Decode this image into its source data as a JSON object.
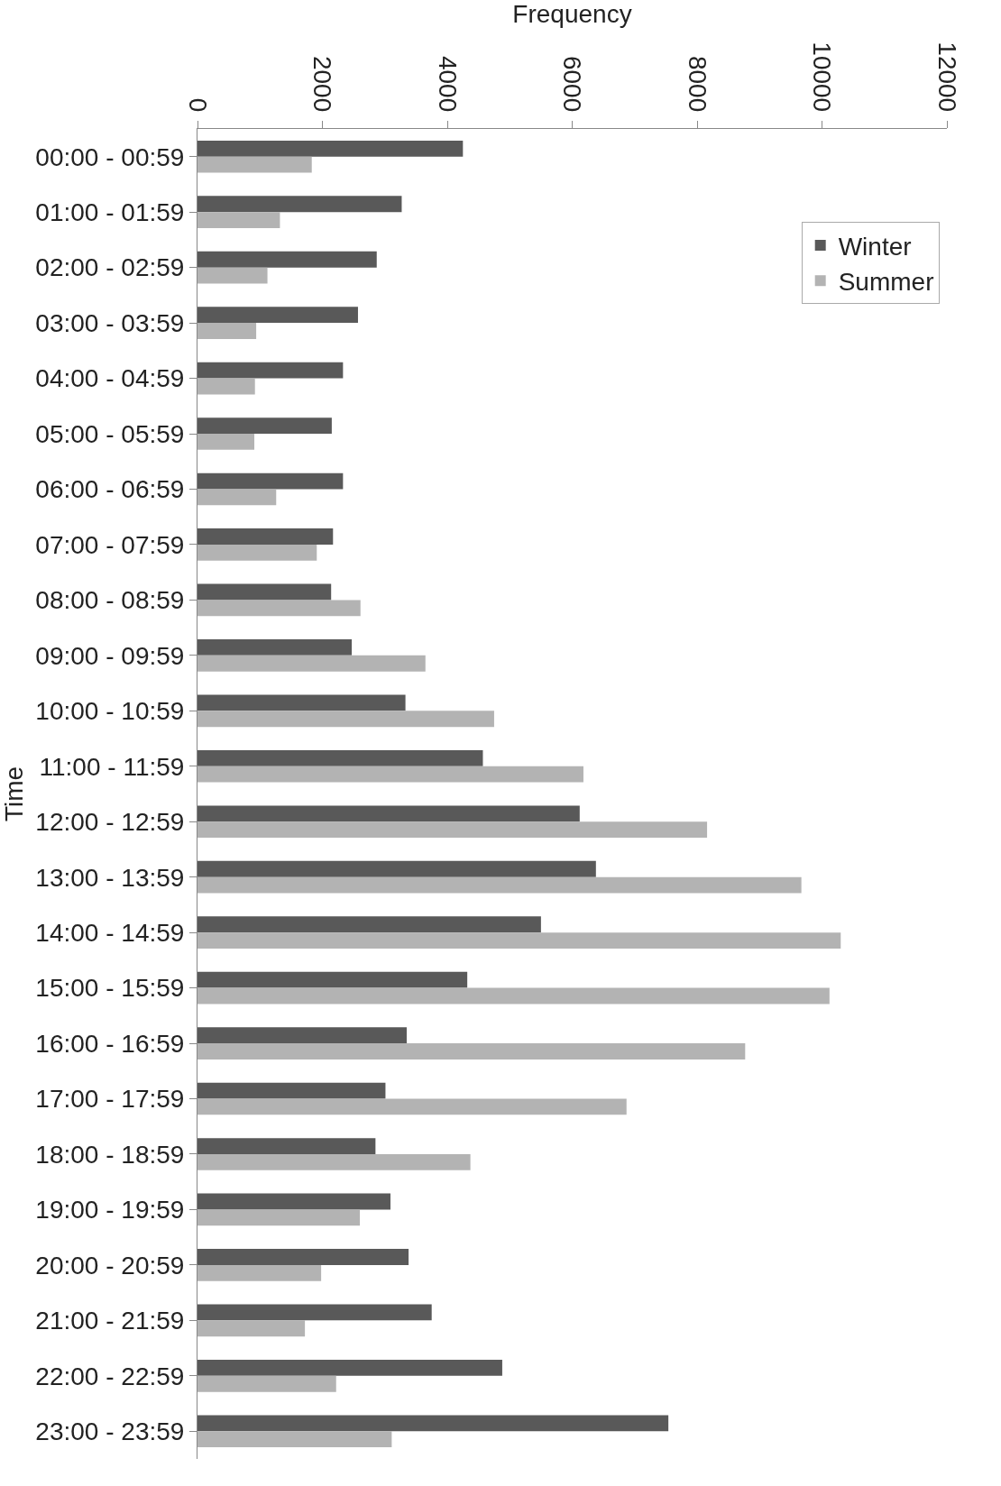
{
  "chart_data": {
    "type": "bar",
    "orientation": "horizontal",
    "xlabel": "Frequency",
    "ylabel": "Time",
    "categories": [
      "00:00 - 00:59",
      "01:00 - 01:59",
      "02:00 - 02:59",
      "03:00 - 03:59",
      "04:00 - 04:59",
      "05:00 - 05:59",
      "06:00 - 06:59",
      "07:00 - 07:59",
      "08:00 - 08:59",
      "09:00 - 09:59",
      "10:00 - 10:59",
      "11:00 - 11:59",
      "12:00 - 12:59",
      "13:00 - 13:59",
      "14:00 - 14:59",
      "15:00 - 15:59",
      "16:00 - 16:59",
      "17:00 - 17:59",
      "18:00 - 18:59",
      "19:00 - 19:59",
      "20:00 - 20:59",
      "21:00 - 21:59",
      "22:00 - 22:59",
      "23:00 - 23:59"
    ],
    "series": [
      {
        "name": "Winter",
        "color": "#595959",
        "values": [
          4250,
          3270,
          2870,
          2570,
          2330,
          2150,
          2330,
          2170,
          2140,
          2470,
          3330,
          4570,
          6120,
          6380,
          5500,
          4320,
          3350,
          3010,
          2850,
          3090,
          3380,
          3750,
          4880,
          7540
        ]
      },
      {
        "name": "Summer",
        "color": "#b3b3b3",
        "values": [
          1830,
          1320,
          1120,
          940,
          920,
          910,
          1260,
          1910,
          2610,
          3650,
          4750,
          6180,
          8160,
          9670,
          10300,
          10120,
          8770,
          6870,
          4370,
          2600,
          1980,
          1720,
          2220,
          3110
        ]
      }
    ],
    "xlim": [
      0,
      12000
    ],
    "xticks": [
      0,
      2000,
      4000,
      6000,
      8000,
      10000,
      12000
    ],
    "legend": "top right"
  }
}
